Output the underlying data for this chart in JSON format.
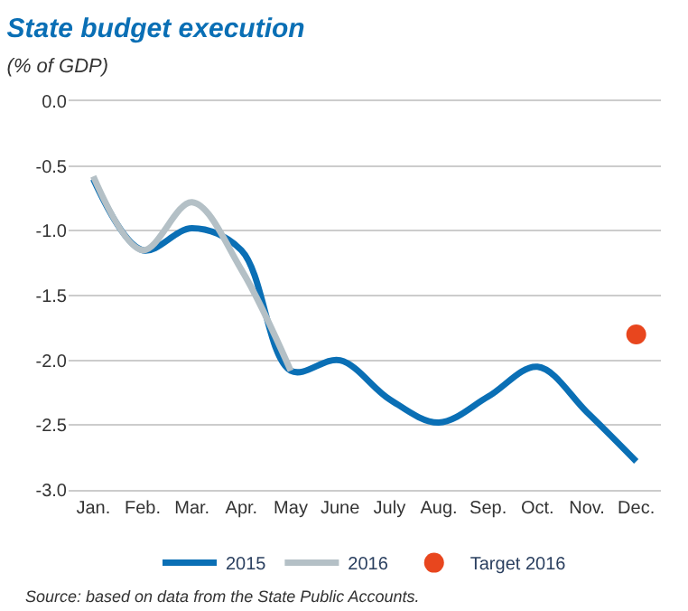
{
  "chart_data": {
    "type": "line",
    "title": "State budget execution",
    "subtitle": "(% of GDP)",
    "categories": [
      "Jan.",
      "Feb.",
      "Mar.",
      "Apr.",
      "May",
      "June",
      "July",
      "Aug.",
      "Sep.",
      "Oct.",
      "Nov.",
      "Dec."
    ],
    "series": [
      {
        "name": "2015",
        "color": "#0a6fb5",
        "marker": "none",
        "values": [
          -0.6,
          -1.15,
          -0.98,
          -1.15,
          -2.08,
          -2.0,
          -2.3,
          -2.48,
          -2.28,
          -2.05,
          -2.4,
          -2.78
        ]
      },
      {
        "name": "2016",
        "color": "#b4c0c6",
        "marker": "none",
        "values": [
          -0.58,
          -1.15,
          -0.78,
          -1.3,
          -2.08,
          null,
          null,
          null,
          null,
          null,
          null,
          null
        ]
      },
      {
        "name": "Target 2016",
        "type": "scatter",
        "color": "#e8461e",
        "marker": "circle",
        "values": [
          null,
          null,
          null,
          null,
          null,
          null,
          null,
          null,
          null,
          null,
          null,
          -1.8
        ]
      }
    ],
    "ylim": [
      -3.0,
      0.0
    ],
    "yticks": [
      {
        "value": 0,
        "label": "0.0"
      },
      {
        "value": -0.5,
        "label": "-0.5"
      },
      {
        "value": -1,
        "label": "-1.0"
      },
      {
        "value": -1.5,
        "label": "-1.5"
      },
      {
        "value": -2,
        "label": "-2.0"
      },
      {
        "value": -2.5,
        "label": "-2.5"
      },
      {
        "value": -3,
        "label": "-3.0"
      }
    ],
    "grid": "y",
    "legend": "bottom",
    "line_style": "solid",
    "annotations": [
      "Source: based on data from the State Public Accounts."
    ]
  }
}
